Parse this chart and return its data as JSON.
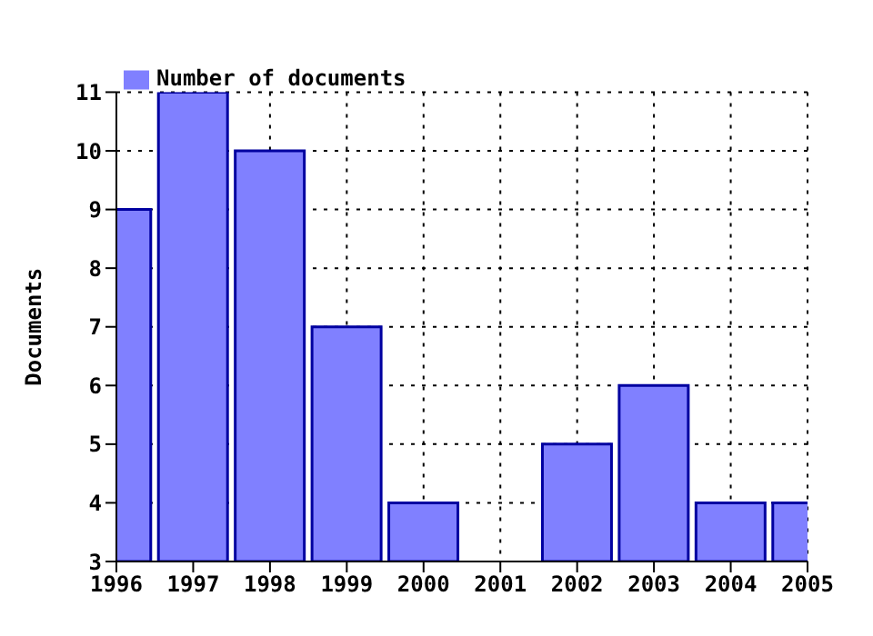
{
  "chart_data": {
    "type": "bar",
    "ylabel": "Documents",
    "x": [
      1996,
      1997,
      1998,
      1999,
      2000,
      2001,
      2002,
      2003,
      2004,
      2005
    ],
    "series": [
      {
        "name": "Number of documents",
        "color": "#8080ff",
        "values": [
          9,
          11,
          10,
          7,
          4,
          null,
          5,
          6,
          4,
          4
        ]
      }
    ],
    "xlim": [
      1996,
      2005
    ],
    "xticks": [
      1996,
      1997,
      1998,
      1999,
      2000,
      2001,
      2002,
      2003,
      2004,
      2005
    ],
    "ylim": [
      3,
      11
    ],
    "yticks": [
      3,
      4,
      5,
      6,
      7,
      8,
      9,
      10,
      11
    ],
    "grid": true,
    "legend": "top left"
  }
}
